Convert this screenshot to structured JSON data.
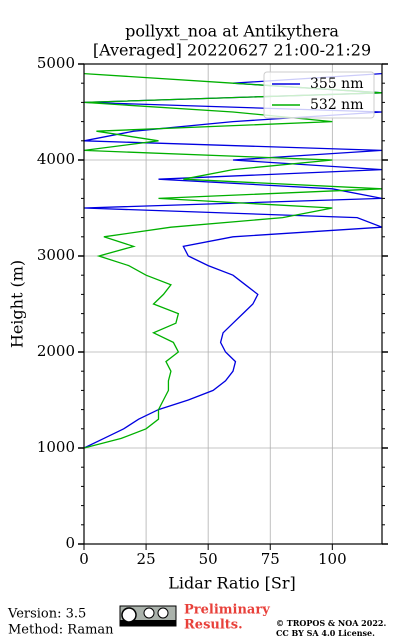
{
  "chart_data": {
    "type": "line",
    "title": "pollyxt_noa at Antikythera",
    "subtitle": "[Averaged] 20220627 21:00-21:29",
    "x_label": "Lidar Ratio [Sr]",
    "y_label": "Height (m)",
    "heights": [
      1000,
      1100,
      1200,
      1300,
      1400,
      1500,
      1600,
      1700,
      1800,
      1900,
      2000,
      2100,
      2200,
      2300,
      2400,
      2500,
      2600,
      2700,
      2800,
      2900,
      3000,
      3100,
      3200,
      3300,
      3400,
      3500,
      3600,
      3700,
      3800,
      3900,
      4000,
      4100,
      4200,
      4300,
      4400,
      4500,
      4600,
      4700,
      4800,
      4900
    ],
    "series": [
      {
        "name": "355 nm",
        "color": "#0000e0",
        "values": [
          0,
          8,
          16,
          22,
          30,
          42,
          52,
          57,
          60,
          61,
          57,
          55,
          56,
          60,
          64,
          68,
          70,
          65,
          60,
          50,
          42,
          40,
          60,
          120,
          110,
          0,
          120,
          100,
          30,
          120,
          60,
          120,
          0,
          20,
          60,
          120,
          0,
          120,
          60,
          120
        ]
      },
      {
        "name": "532 nm",
        "color": "#00b000",
        "values": [
          0,
          15,
          25,
          30,
          30,
          32,
          34,
          34,
          35,
          33,
          38,
          36,
          28,
          37,
          38,
          28,
          32,
          35,
          25,
          18,
          6,
          20,
          8,
          35,
          80,
          100,
          30,
          120,
          40,
          60,
          100,
          0,
          30,
          5,
          100,
          60,
          0,
          120,
          60,
          0
        ]
      }
    ],
    "xlim": [
      0,
      120
    ],
    "xticks": [
      0,
      25,
      50,
      75,
      100
    ],
    "ylim": [
      0,
      5000
    ],
    "yticks": [
      0,
      1000,
      2000,
      3000,
      4000,
      5000
    ],
    "grid": true,
    "legend": "upper right"
  },
  "footer": {
    "version": "Version: 3.5",
    "method": "Method: Raman",
    "preliminary": "Preliminary",
    "results": "Results.",
    "copyright": "© TROPOS & NOA 2022.",
    "license": "CC BY SA 4.0 License."
  }
}
